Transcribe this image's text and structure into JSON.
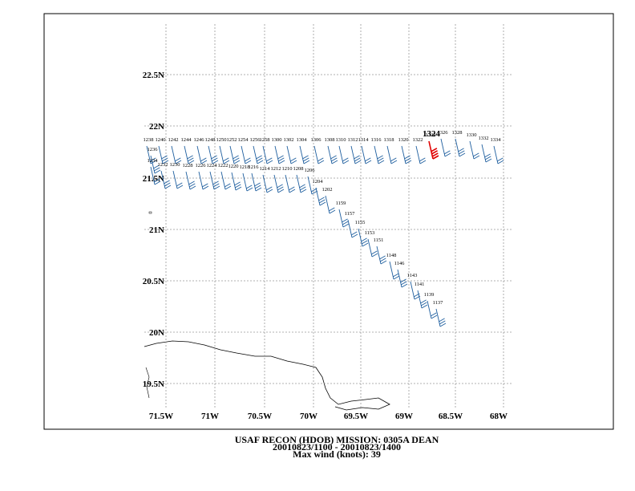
{
  "map": {
    "lat_labels": [
      "22.5N",
      "22N",
      "21.5N",
      "21N",
      "20.5N",
      "20N",
      "19.5N"
    ],
    "lon_labels": [
      "71.5W",
      "71W",
      "70.5W",
      "70W",
      "69.5W",
      "69W",
      "68.5W",
      "68W"
    ],
    "obs_times": [
      "1238",
      "1240",
      "1242",
      "1244",
      "1246",
      "1248",
      "1250",
      "1252",
      "1254",
      "1256",
      "1258",
      "1300",
      "1302",
      "1304",
      "1306",
      "1308",
      "1310",
      "1312",
      "1314",
      "1316",
      "1318",
      "1320",
      "1322",
      "1324",
      "1326",
      "1328",
      "1330",
      "1332",
      "1334",
      "1236",
      "1234",
      "1232",
      "1230",
      "1228",
      "1226",
      "1224",
      "1222",
      "1220",
      "1218",
      "1216",
      "1214",
      "1212",
      "1210",
      "1208",
      "1206",
      "1204",
      "1202",
      "1159",
      "1157",
      "1155",
      "1153",
      "1151",
      "1148",
      "1146",
      "1143",
      "1141",
      "1139",
      "1137"
    ],
    "highlight": "1324",
    "footer": [
      "USAF RECON (HDOB) MISSION:  0305A   DEAN",
      "20010823/1100 - 20010823/1400",
      "Max wind (knots):  39"
    ]
  }
}
